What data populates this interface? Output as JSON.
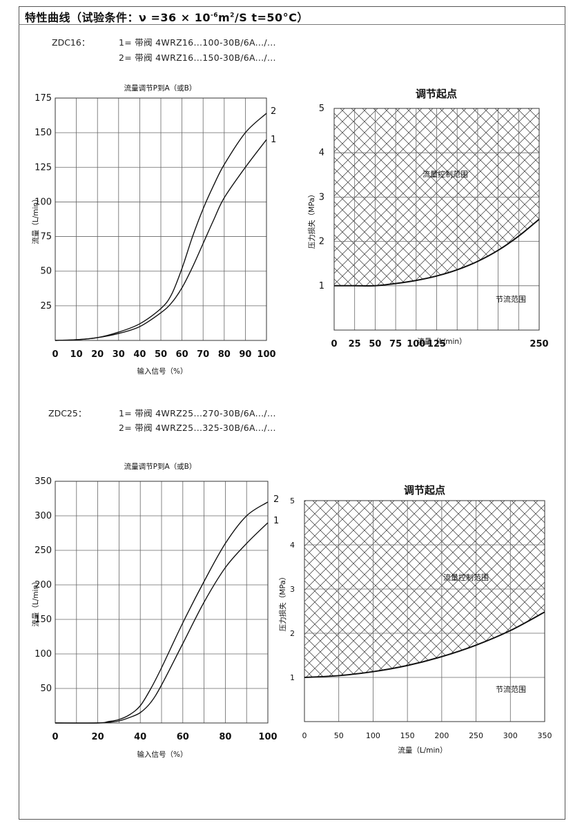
{
  "header": {
    "title_main": "特性曲线（试验条件：ν =36 × 10",
    "title_exp": "-6",
    "title_mid": "m",
    "title_exp2": "2",
    "title_end": "/S  t=50°C）"
  },
  "sections": [
    {
      "model": "ZDC16：",
      "valve_lines": [
        "1= 带阀 4WRZ16...100-30B/6A.../...",
        "2= 带阀 4WRZ16...150-30B/6A.../..."
      ]
    },
    {
      "model": "ZDC25：",
      "valve_lines": [
        "1= 带阀 4WRZ25...270-30B/6A.../...",
        "2= 带阀 4WRZ25...325-30B/6A.../..."
      ]
    }
  ],
  "chart_data": [
    {
      "type": "line",
      "title": "流量调节P到A（或B）",
      "xlabel": "输入信号（%）",
      "ylabel": "流量（L/min）",
      "xlim": [
        0,
        100
      ],
      "ylim": [
        0,
        175
      ],
      "xticks": [
        0,
        10,
        20,
        30,
        40,
        50,
        60,
        70,
        80,
        90,
        100
      ],
      "yticks": [
        25,
        50,
        75,
        100,
        125,
        150,
        175
      ],
      "grid": true,
      "series": [
        {
          "name": "1",
          "x": [
            0,
            10,
            20,
            30,
            40,
            50,
            55,
            60,
            65,
            70,
            75,
            80,
            90,
            100
          ],
          "y": [
            0,
            0.5,
            2,
            5,
            10,
            20,
            27,
            38,
            53,
            70,
            87,
            103,
            125,
            145
          ]
        },
        {
          "name": "2",
          "x": [
            0,
            10,
            20,
            30,
            40,
            50,
            55,
            60,
            65,
            70,
            75,
            80,
            90,
            100
          ],
          "y": [
            0,
            0.5,
            2,
            6,
            12,
            23,
            33,
            52,
            75,
            95,
            112,
            127,
            150,
            164
          ]
        }
      ]
    },
    {
      "type": "area",
      "title": "调节起点",
      "xlabel": "流量（L/min）",
      "ylabel": "压力损失（MPa）",
      "xlim": [
        0,
        250
      ],
      "ylim": [
        0,
        5
      ],
      "xticks": [
        0,
        25,
        50,
        75,
        100,
        125,
        150,
        175,
        200,
        225,
        250
      ],
      "xtick_labels": [
        "0",
        "25",
        "50",
        "75",
        "100",
        "125",
        "250"
      ],
      "yticks": [
        1,
        2,
        3,
        4,
        5
      ],
      "grid": true,
      "upper_region_label": "流量控制范围",
      "lower_region_label": "节流范围",
      "series": [
        {
          "x": [
            0,
            25,
            50,
            75,
            100,
            125,
            150,
            175,
            200,
            225,
            250
          ],
          "y": [
            1.0,
            1.0,
            1.0,
            1.05,
            1.12,
            1.22,
            1.36,
            1.55,
            1.8,
            2.12,
            2.5
          ]
        }
      ]
    },
    {
      "type": "line",
      "title": "流量调节P到A（或B）",
      "xlabel": "输入信号（%）",
      "ylabel": "流量（L/min）",
      "xlim": [
        0,
        100
      ],
      "ylim": [
        0,
        350
      ],
      "xticks": [
        0,
        10,
        20,
        30,
        40,
        50,
        60,
        70,
        80,
        90,
        100
      ],
      "xtick_labels": [
        "0",
        "20",
        "40",
        "60",
        "80",
        "100"
      ],
      "yticks": [
        50,
        100,
        150,
        200,
        250,
        300,
        350
      ],
      "grid": true,
      "series": [
        {
          "name": "1",
          "x": [
            0,
            20,
            25,
            30,
            35,
            40,
            45,
            50,
            60,
            70,
            80,
            90,
            100
          ],
          "y": [
            0,
            0,
            1,
            3,
            8,
            15,
            30,
            55,
            115,
            175,
            225,
            260,
            290
          ]
        },
        {
          "name": "2",
          "x": [
            0,
            20,
            25,
            30,
            35,
            40,
            45,
            50,
            60,
            70,
            80,
            90,
            100
          ],
          "y": [
            0,
            0,
            2,
            5,
            12,
            25,
            50,
            80,
            145,
            205,
            260,
            300,
            320
          ]
        }
      ]
    },
    {
      "type": "area",
      "title": "调节起点",
      "xlabel": "流量（L/min）",
      "ylabel": "压力损失（MPa）",
      "xlim": [
        0,
        350
      ],
      "ylim": [
        0,
        5
      ],
      "xticks": [
        0,
        50,
        100,
        150,
        200,
        250,
        300,
        350
      ],
      "yticks": [
        1,
        2,
        3,
        4,
        5
      ],
      "grid": true,
      "upper_region_label": "流量控制范围",
      "lower_region_label": "节流范围",
      "series": [
        {
          "x": [
            0,
            50,
            100,
            150,
            200,
            250,
            300,
            350
          ],
          "y": [
            1.0,
            1.04,
            1.13,
            1.27,
            1.47,
            1.73,
            2.06,
            2.48
          ]
        }
      ]
    }
  ]
}
